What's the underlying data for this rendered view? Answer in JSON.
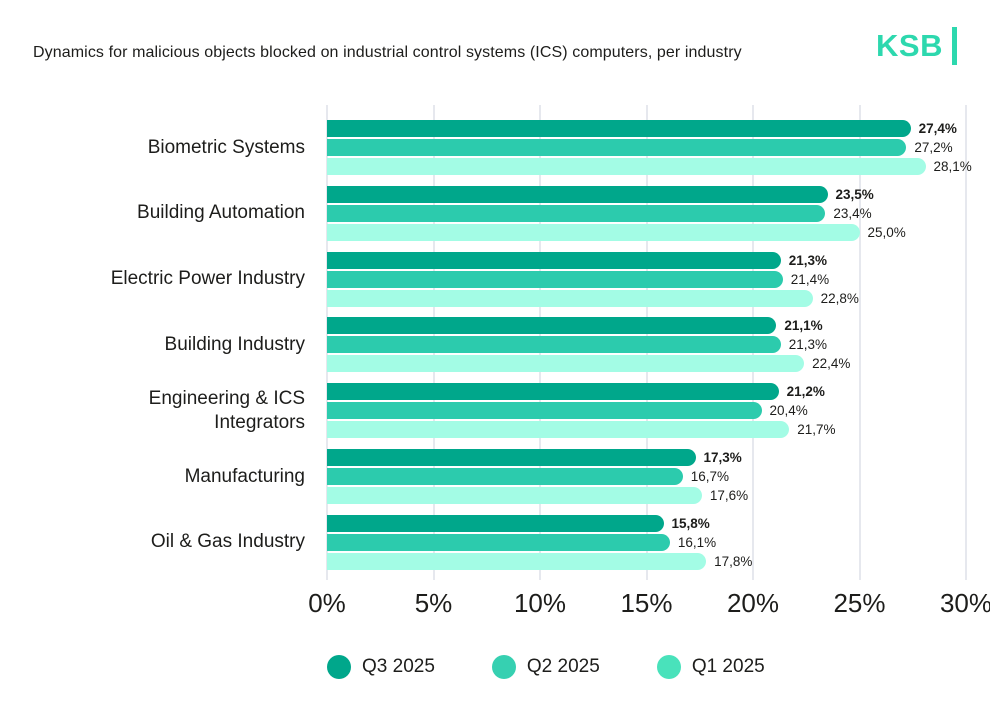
{
  "header": {
    "title": "Dynamics for malicious objects blocked on industrial control systems (ICS) computers, per industry",
    "logo_text": "KSB"
  },
  "colors": {
    "q3_bar": "#00A78B",
    "q2_bar": "#2CCBAD",
    "q1_bar": "#A3FCE5",
    "q3_legend": "#00A78B",
    "q2_legend": "#36D0B1",
    "q1_legend": "#49E2BB",
    "grid": "#E6E8EE",
    "text": "#1D1D1B",
    "logo": "#2DD8AE"
  },
  "chart_data": {
    "type": "bar",
    "orientation": "horizontal",
    "title": "Dynamics for malicious objects blocked on industrial control systems (ICS) computers, per industry",
    "categories": [
      "Biometric Systems",
      "Building Automation",
      "Electric Power Industry",
      "Building Industry",
      "Engineering & ICS Integrators",
      "Manufacturing",
      "Oil & Gas Industry"
    ],
    "series": [
      {
        "name": "Q3 2025",
        "color": "#00A78B",
        "legend_color": "#00A78B",
        "emphasis": true,
        "values": [
          27.4,
          23.5,
          21.3,
          21.1,
          21.2,
          17.3,
          15.8
        ],
        "labels": [
          "27,4%",
          "23,5%",
          "21,3%",
          "21,1%",
          "21,2%",
          "17,3%",
          "15,8%"
        ]
      },
      {
        "name": "Q2 2025",
        "color": "#2CCBAD",
        "legend_color": "#36D0B1",
        "emphasis": false,
        "values": [
          27.2,
          23.4,
          21.4,
          21.3,
          20.4,
          16.7,
          16.1
        ],
        "labels": [
          "27,2%",
          "23,4%",
          "21,4%",
          "21,3%",
          "20,4%",
          "16,7%",
          "16,1%"
        ]
      },
      {
        "name": "Q1 2025",
        "color": "#A3FCE5",
        "legend_color": "#49E2BB",
        "emphasis": false,
        "values": [
          28.1,
          25.0,
          22.8,
          22.4,
          21.7,
          17.6,
          17.8
        ],
        "labels": [
          "28,1%",
          "25,0%",
          "22,8%",
          "22,4%",
          "21,7%",
          "17,6%",
          "17,8%"
        ]
      }
    ],
    "x_ticks": [
      "0%",
      "5%",
      "10%",
      "15%",
      "20%",
      "25%",
      "30%"
    ],
    "xlim": [
      0,
      30
    ],
    "grid": "vertical",
    "legend_position": "bottom"
  }
}
